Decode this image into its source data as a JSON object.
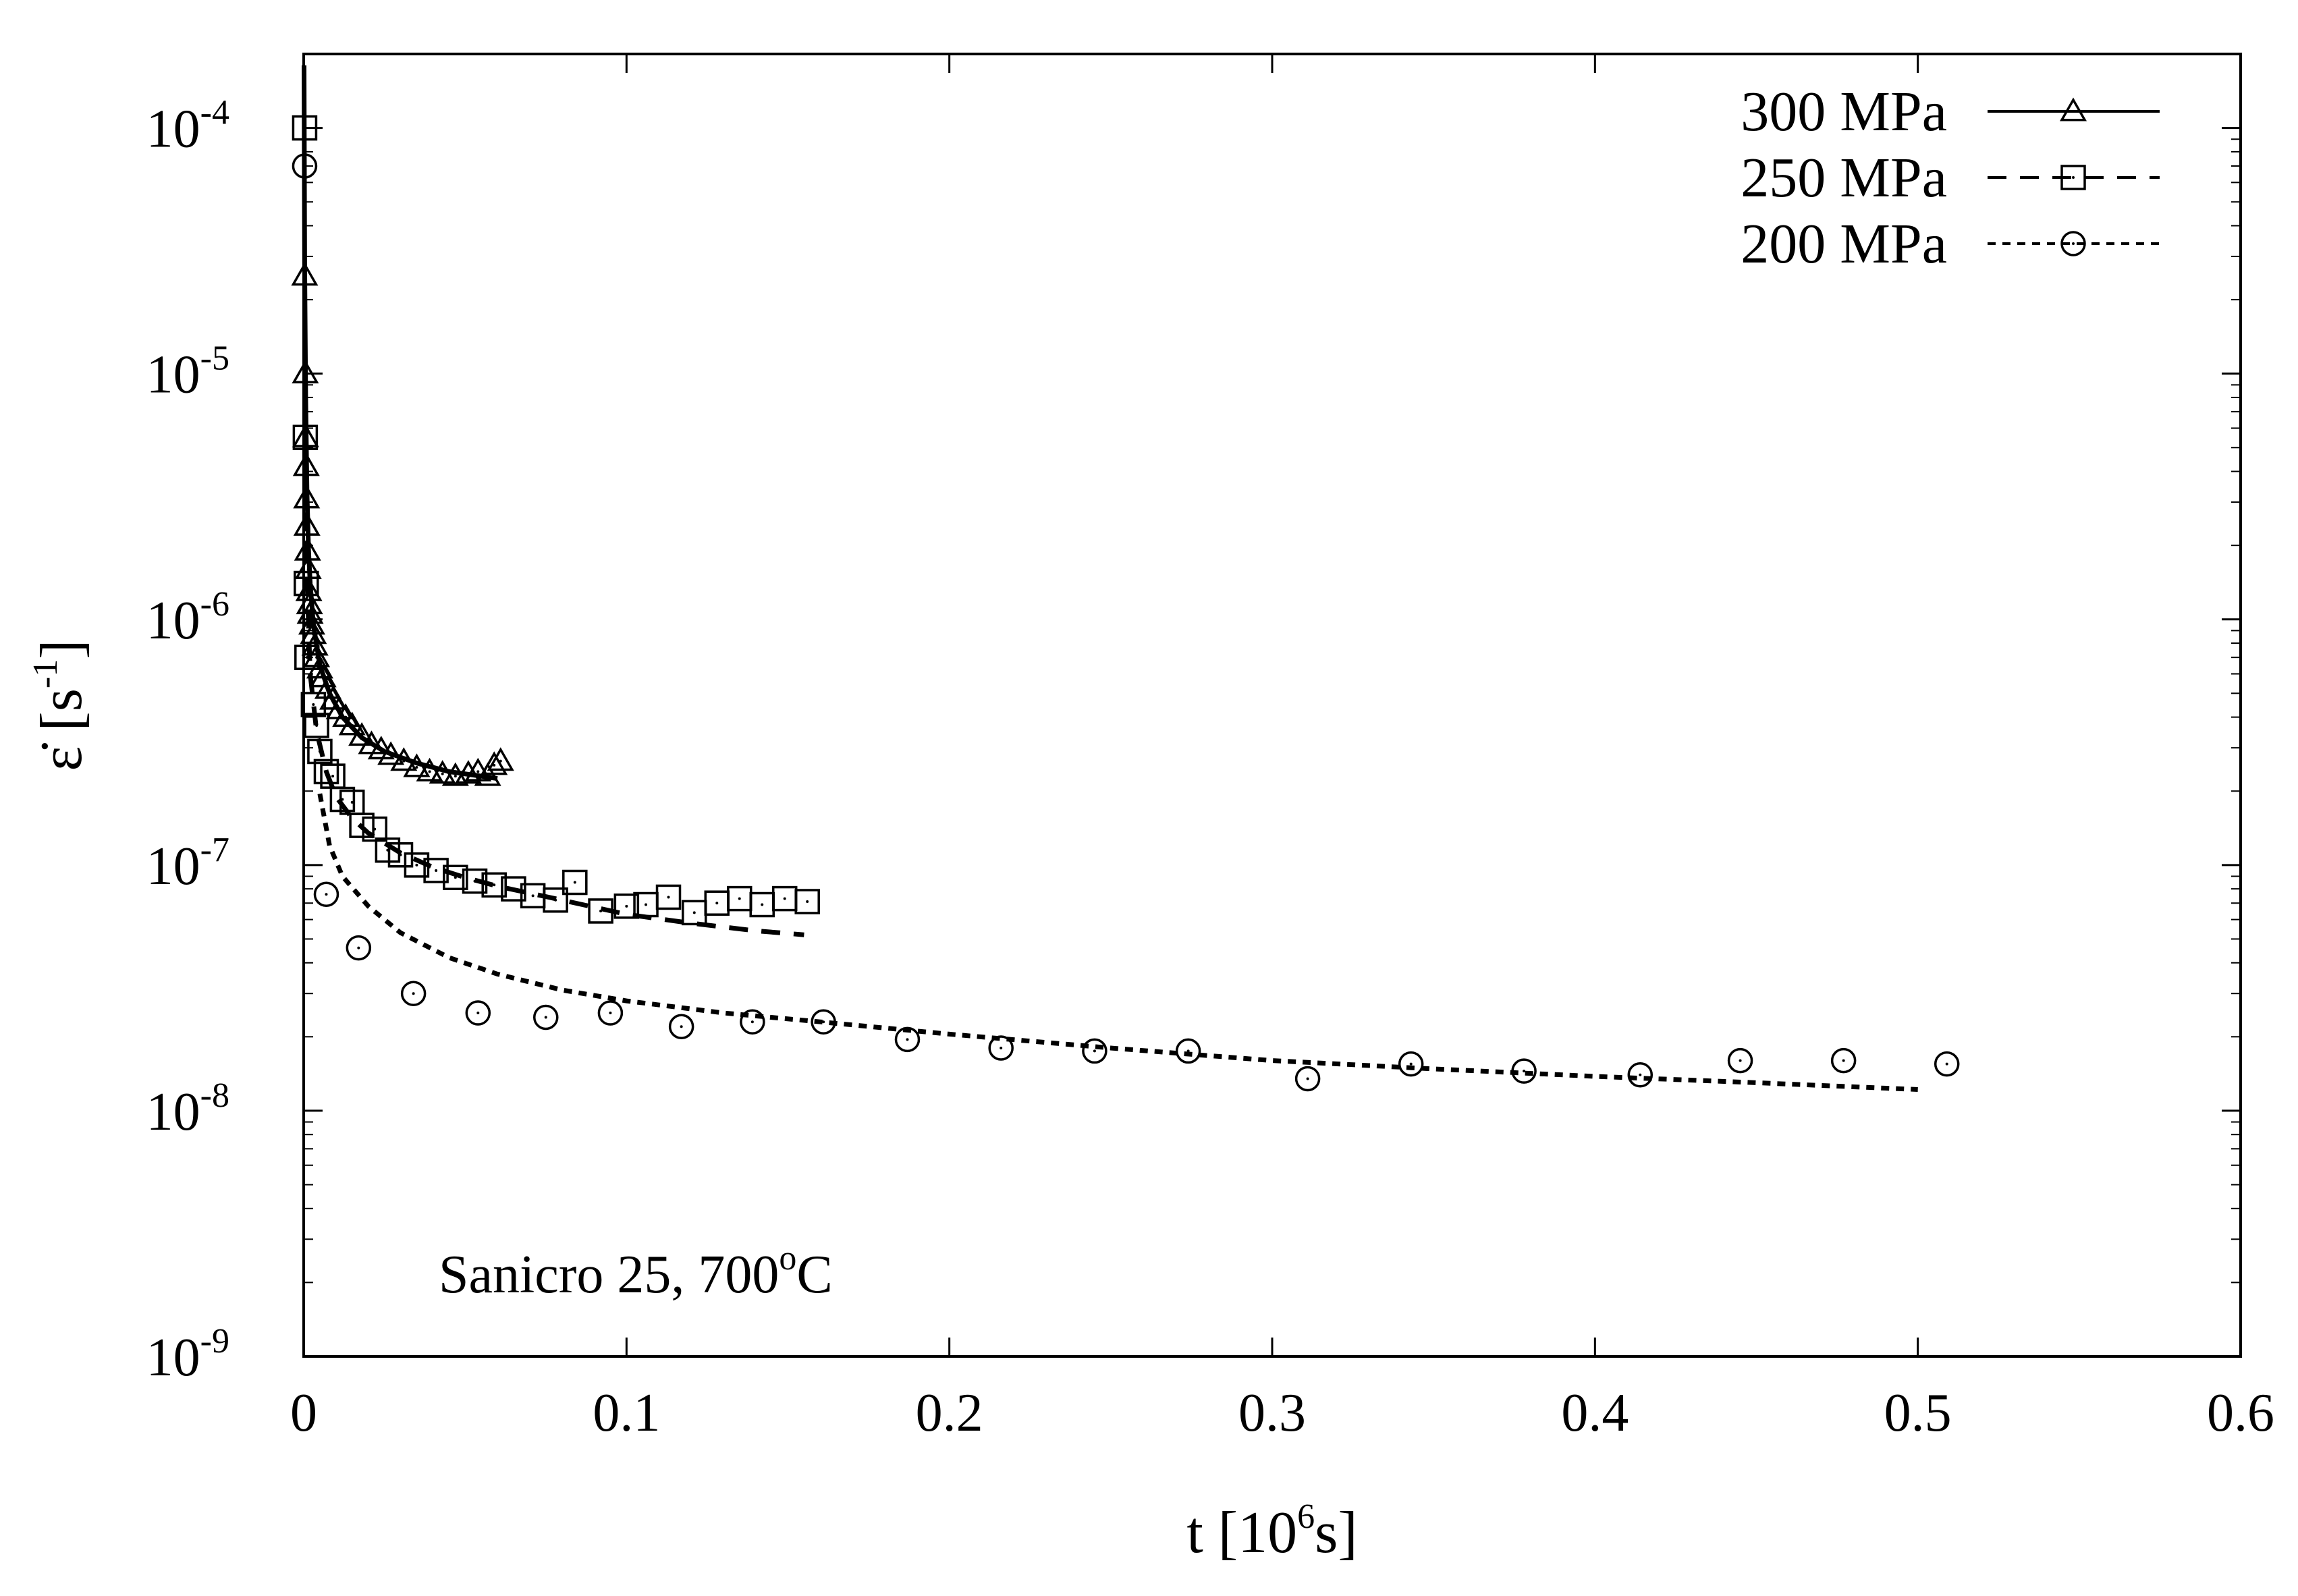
{
  "chart_data": {
    "type": "scatter",
    "title": "",
    "xlabel": "t [10⁶s]",
    "ylabel": "ε̇ [s⁻¹]",
    "xlabel_parts": {
      "base": "t [10",
      "sup": "6",
      "end": "s]"
    },
    "ylabel_parts": {
      "base": "ε̇ [s",
      "sup": "-1",
      "end": "]"
    },
    "xlim": [
      0,
      0.6
    ],
    "ylim": [
      1e-09,
      0.0002
    ],
    "yscale": "log",
    "xticks": [
      {
        "value": 0,
        "label": "0"
      },
      {
        "value": 0.1,
        "label": "0.1"
      },
      {
        "value": 0.2,
        "label": "0.2"
      },
      {
        "value": 0.3,
        "label": "0.3"
      },
      {
        "value": 0.4,
        "label": "0.4"
      },
      {
        "value": 0.5,
        "label": "0.5"
      },
      {
        "value": 0.6,
        "label": "0.6"
      }
    ],
    "yticks": [
      {
        "value": 1e-09,
        "base": "10",
        "exp": "-9"
      },
      {
        "value": 1e-08,
        "base": "10",
        "exp": "-8"
      },
      {
        "value": 1e-07,
        "base": "10",
        "exp": "-7"
      },
      {
        "value": 1e-06,
        "base": "10",
        "exp": "-6"
      },
      {
        "value": 1e-05,
        "base": "10",
        "exp": "-5"
      },
      {
        "value": 0.0001,
        "base": "10",
        "exp": "-4"
      }
    ],
    "legend_position": "top-right",
    "annotation": {
      "text": "Sanicro 25, 700",
      "sup": "o",
      "end": "C"
    },
    "series": [
      {
        "name": "300 MPa",
        "marker": "triangle",
        "line_style": "solid",
        "points": [
          [
            0.0003,
            2.5e-05
          ],
          [
            0.0005,
            1e-05
          ],
          [
            0.0006,
            5.5e-06
          ],
          [
            0.0008,
            4.2e-06
          ],
          [
            0.0009,
            3.1e-06
          ],
          [
            0.001,
            2.4e-06
          ],
          [
            0.0012,
            1.9e-06
          ],
          [
            0.0014,
            1.6e-06
          ],
          [
            0.0016,
            1.3e-06
          ],
          [
            0.0018,
            1.15e-06
          ],
          [
            0.002,
            1.05e-06
          ],
          [
            0.0025,
            9.5e-07
          ],
          [
            0.003,
            8.7e-07
          ],
          [
            0.0035,
            7.8e-07
          ],
          [
            0.004,
            7e-07
          ],
          [
            0.005,
            6.3e-07
          ],
          [
            0.006,
            5.8e-07
          ],
          [
            0.0075,
            5.2e-07
          ],
          [
            0.009,
            4.7e-07
          ],
          [
            0.011,
            4.3e-07
          ],
          [
            0.013,
            4e-07
          ],
          [
            0.015,
            3.7e-07
          ],
          [
            0.018,
            3.35e-07
          ],
          [
            0.021,
            3.1e-07
          ],
          [
            0.024,
            2.95e-07
          ],
          [
            0.027,
            2.8e-07
          ],
          [
            0.031,
            2.65e-07
          ],
          [
            0.035,
            2.5e-07
          ],
          [
            0.039,
            2.4e-07
          ],
          [
            0.043,
            2.35e-07
          ],
          [
            0.047,
            2.3e-07
          ],
          [
            0.051,
            2.35e-07
          ],
          [
            0.054,
            2.4e-07
          ],
          [
            0.057,
            2.3e-07
          ],
          [
            0.059,
            2.55e-07
          ],
          [
            0.061,
            2.65e-07
          ]
        ],
        "fit": [
          [
            0.0001,
            0.00018
          ],
          [
            0.0003,
            2.8e-05
          ],
          [
            0.0006,
            8e-06
          ],
          [
            0.001,
            3.3e-06
          ],
          [
            0.0015,
            1.9e-06
          ],
          [
            0.002,
            1.4e-06
          ],
          [
            0.003,
            9.5e-07
          ],
          [
            0.005,
            6.5e-07
          ],
          [
            0.008,
            5e-07
          ],
          [
            0.012,
            4e-07
          ],
          [
            0.018,
            3.3e-07
          ],
          [
            0.025,
            2.9e-07
          ],
          [
            0.035,
            2.6e-07
          ],
          [
            0.045,
            2.4e-07
          ],
          [
            0.055,
            2.3e-07
          ],
          [
            0.06,
            2.25e-07
          ]
        ]
      },
      {
        "name": "250 MPa",
        "marker": "square",
        "line_style": "dashed",
        "points": [
          [
            0.0003,
            0.0001
          ],
          [
            0.0005,
            5.5e-06
          ],
          [
            0.0008,
            1.4e-06
          ],
          [
            0.001,
            7e-07
          ],
          [
            0.003,
            4.5e-07
          ],
          [
            0.004,
            3.7e-07
          ],
          [
            0.005,
            2.9e-07
          ],
          [
            0.007,
            2.4e-07
          ],
          [
            0.009,
            2.3e-07
          ],
          [
            0.012,
            1.85e-07
          ],
          [
            0.015,
            1.8e-07
          ],
          [
            0.018,
            1.45e-07
          ],
          [
            0.022,
            1.4e-07
          ],
          [
            0.026,
            1.15e-07
          ],
          [
            0.03,
            1.1e-07
          ],
          [
            0.035,
            1e-07
          ],
          [
            0.041,
            9.5e-08
          ],
          [
            0.047,
            8.9e-08
          ],
          [
            0.053,
            8.6e-08
          ],
          [
            0.059,
            8.3e-08
          ],
          [
            0.065,
            8e-08
          ],
          [
            0.071,
            7.5e-08
          ],
          [
            0.078,
            7.2e-08
          ],
          [
            0.084,
            8.5e-08
          ],
          [
            0.092,
            6.5e-08
          ],
          [
            0.1,
            6.8e-08
          ],
          [
            0.106,
            6.9e-08
          ],
          [
            0.113,
            7.4e-08
          ],
          [
            0.121,
            6.4e-08
          ],
          [
            0.128,
            7e-08
          ],
          [
            0.135,
            7.3e-08
          ],
          [
            0.142,
            6.9e-08
          ],
          [
            0.149,
            7.3e-08
          ],
          [
            0.156,
            7.1e-08
          ]
        ],
        "fit": [
          [
            0.0005,
            5e-06
          ],
          [
            0.001,
            1.5e-06
          ],
          [
            0.002,
            6e-07
          ],
          [
            0.004,
            3.5e-07
          ],
          [
            0.007,
            2.4e-07
          ],
          [
            0.01,
            1.9e-07
          ],
          [
            0.015,
            1.55e-07
          ],
          [
            0.02,
            1.35e-07
          ],
          [
            0.03,
            1.12e-07
          ],
          [
            0.04,
            9.8e-08
          ],
          [
            0.05,
            8.9e-08
          ],
          [
            0.06,
            8.2e-08
          ],
          [
            0.08,
            7.2e-08
          ],
          [
            0.1,
            6.3e-08
          ],
          [
            0.12,
            5.8e-08
          ],
          [
            0.14,
            5.4e-08
          ],
          [
            0.155,
            5.2e-08
          ]
        ]
      },
      {
        "name": "200 MPa",
        "marker": "circle",
        "line_style": "dotted",
        "points": [
          [
            0.0003,
            7e-05
          ],
          [
            0.007,
            7.6e-08
          ],
          [
            0.017,
            4.6e-08
          ],
          [
            0.034,
            3e-08
          ],
          [
            0.054,
            2.5e-08
          ],
          [
            0.075,
            2.4e-08
          ],
          [
            0.095,
            2.5e-08
          ],
          [
            0.117,
            2.2e-08
          ],
          [
            0.139,
            2.3e-08
          ],
          [
            0.161,
            2.3e-08
          ],
          [
            0.187,
            1.95e-08
          ],
          [
            0.216,
            1.8e-08
          ],
          [
            0.245,
            1.75e-08
          ],
          [
            0.274,
            1.75e-08
          ],
          [
            0.311,
            1.35e-08
          ],
          [
            0.343,
            1.55e-08
          ],
          [
            0.378,
            1.45e-08
          ],
          [
            0.414,
            1.4e-08
          ],
          [
            0.445,
            1.6e-08
          ],
          [
            0.477,
            1.6e-08
          ],
          [
            0.509,
            1.55e-08
          ]
        ],
        "fit": [
          [
            0.005,
            1.95e-07
          ],
          [
            0.008,
            1.2e-07
          ],
          [
            0.012,
            9e-08
          ],
          [
            0.02,
            6.8e-08
          ],
          [
            0.03,
            5.3e-08
          ],
          [
            0.045,
            4.2e-08
          ],
          [
            0.06,
            3.6e-08
          ],
          [
            0.08,
            3.1e-08
          ],
          [
            0.1,
            2.8e-08
          ],
          [
            0.13,
            2.5e-08
          ],
          [
            0.16,
            2.3e-08
          ],
          [
            0.2,
            2.05e-08
          ],
          [
            0.25,
            1.8e-08
          ],
          [
            0.3,
            1.6e-08
          ],
          [
            0.35,
            1.48e-08
          ],
          [
            0.4,
            1.38e-08
          ],
          [
            0.45,
            1.3e-08
          ],
          [
            0.5,
            1.22e-08
          ]
        ]
      }
    ]
  }
}
